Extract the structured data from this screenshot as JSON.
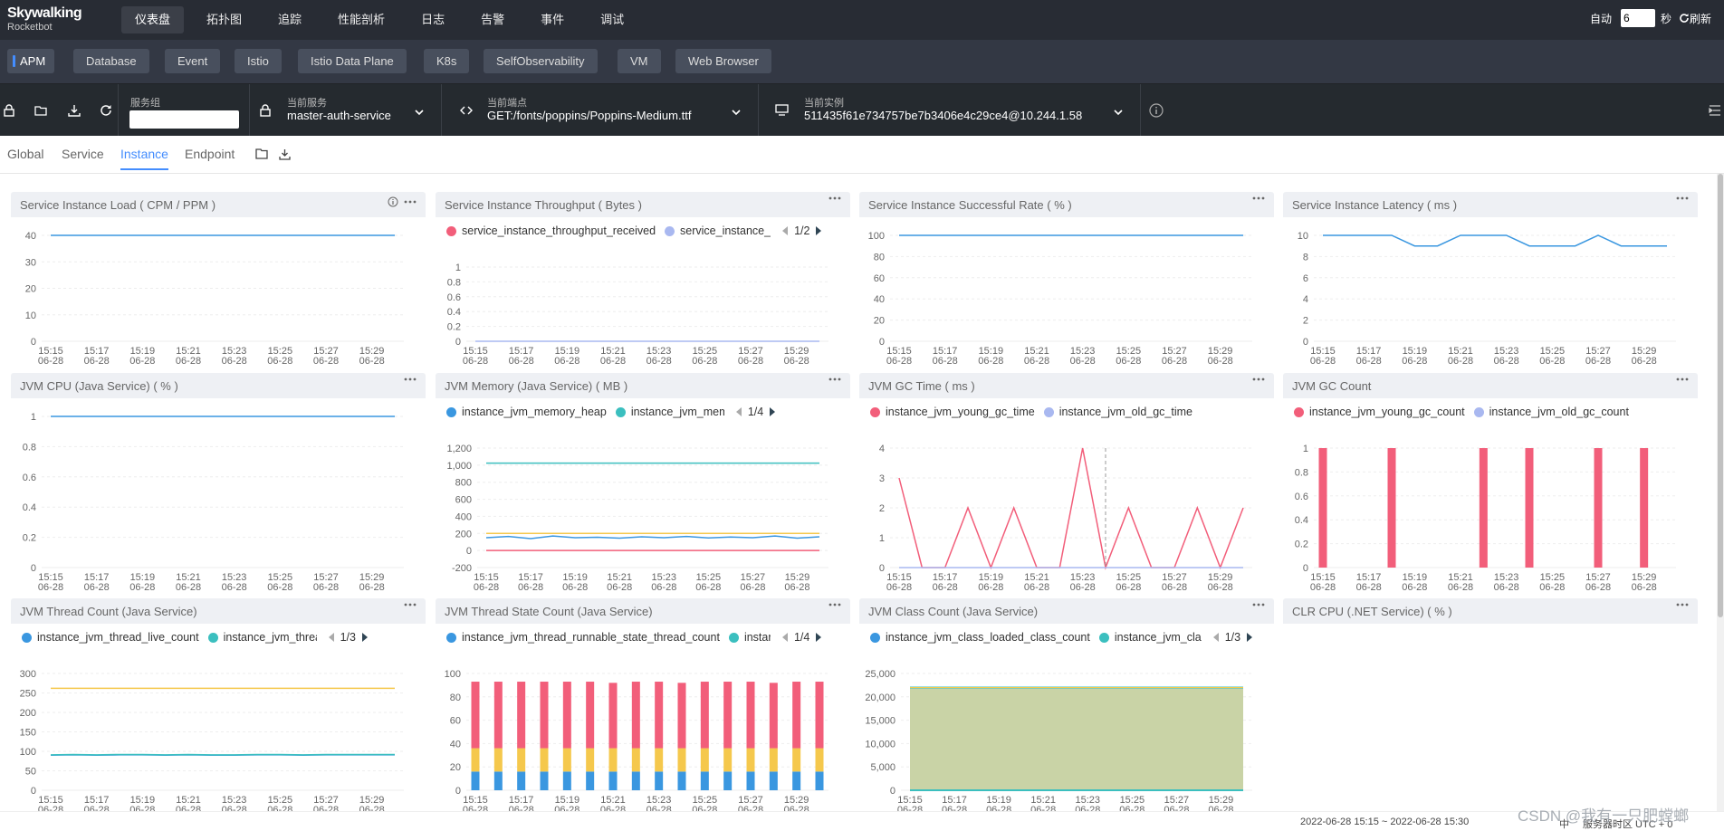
{
  "app": {
    "title": "Skywalking",
    "subtitle": "Rocketbot"
  },
  "nav": [
    {
      "label": "仪表盘",
      "active": true
    },
    {
      "label": "拓扑图"
    },
    {
      "label": "追踪"
    },
    {
      "label": "性能剖析"
    },
    {
      "label": "日志"
    },
    {
      "label": "告警"
    },
    {
      "label": "事件"
    },
    {
      "label": "调试"
    }
  ],
  "auto_refresh": {
    "label": "自动",
    "value": "6",
    "unit": "秒",
    "refresh_label": "刷新"
  },
  "layers": [
    "APM",
    "Database",
    "Event",
    "Istio",
    "Istio Data Plane",
    "K8s",
    "SelfObservability",
    "VM",
    "Web Browser"
  ],
  "selectors": {
    "group": {
      "label": "服务组",
      "value": ""
    },
    "service": {
      "label": "当前服务",
      "value": "master-auth-service"
    },
    "endpoint": {
      "label": "当前端点",
      "value": "GET:/fonts/poppins/Poppins-Medium.ttf"
    },
    "instance": {
      "label": "当前实例",
      "value": "511435f61e734757be7b3406e4c29ce4@10.244.1.58"
    }
  },
  "tabs": [
    {
      "label": "Global"
    },
    {
      "label": "Service"
    },
    {
      "label": "Instance",
      "active": true
    },
    {
      "label": "Endpoint"
    }
  ],
  "colors": {
    "accent": "#448dfe",
    "topbar": "#282c34",
    "blue": "#3a97e0",
    "pink": "#f25e7a",
    "lavender": "#a9b8f0",
    "teal": "#3bbfbf",
    "yellow": "#f5c84c"
  },
  "time_axis": [
    "15:15",
    "15:17",
    "15:19",
    "15:21",
    "15:23",
    "15:25",
    "15:27",
    "15:29"
  ],
  "time_axis_date": "06-28",
  "charts": [
    {
      "title": "Service Instance Load ( CPM / PPM )",
      "type": "line",
      "info": true,
      "ticks": [
        "0",
        "10",
        "20",
        "30",
        "40"
      ],
      "ymax": 40,
      "series": [
        {
          "values": [
            40,
            40,
            40,
            40,
            40,
            40,
            40,
            40,
            40,
            40,
            40,
            40,
            40,
            40,
            40,
            40
          ],
          "color": "blue"
        }
      ]
    },
    {
      "title": "Service Instance Throughput ( Bytes )",
      "type": "line",
      "ticks": [
        "0",
        "0.2",
        "0.4",
        "0.6",
        "0.8",
        "1"
      ],
      "ymax": 1,
      "legend": [
        "service_instance_throughput_received",
        "service_instance_"
      ],
      "legend_colors": [
        "pink",
        "lavender"
      ],
      "page": "1/2",
      "series": [
        {
          "values": [
            0,
            0,
            0,
            0,
            0,
            0,
            0,
            0,
            0,
            0,
            0,
            0,
            0,
            0,
            0,
            0
          ],
          "color": "lavender"
        }
      ]
    },
    {
      "title": "Service Instance Successful Rate ( % )",
      "type": "line",
      "ticks": [
        "0",
        "20",
        "40",
        "60",
        "80",
        "100"
      ],
      "ymax": 100,
      "series": [
        {
          "values": [
            100,
            100,
            100,
            100,
            100,
            100,
            100,
            100,
            100,
            100,
            100,
            100,
            100,
            100,
            100,
            100
          ],
          "color": "blue"
        }
      ]
    },
    {
      "title": "Service Instance Latency ( ms )",
      "type": "line",
      "ticks": [
        "0",
        "2",
        "4",
        "6",
        "8",
        "10"
      ],
      "ymax": 10,
      "series": [
        {
          "values": [
            10,
            10,
            10,
            10,
            9,
            9,
            10,
            10,
            10,
            9,
            9,
            9,
            10,
            9,
            9,
            9
          ],
          "color": "blue"
        }
      ]
    },
    {
      "title": "JVM CPU (Java Service) ( % )",
      "type": "line",
      "ticks": [
        "0",
        "0.2",
        "0.4",
        "0.6",
        "0.8",
        "1"
      ],
      "ymax": 1,
      "series": [
        {
          "values": [
            1,
            1,
            1,
            1,
            1,
            1,
            1,
            1,
            1,
            1,
            1,
            1,
            1,
            1,
            1,
            1
          ],
          "color": "blue"
        }
      ]
    },
    {
      "title": "JVM Memory (Java Service) ( MB )",
      "type": "line",
      "ticks": [
        "-200",
        "0",
        "200",
        "400",
        "600",
        "800",
        "1,000",
        "1,200"
      ],
      "ymin": -200,
      "ymax": 1200,
      "legend": [
        "instance_jvm_memory_heap",
        "instance_jvm_memory_hea|"
      ],
      "legend_colors": [
        "blue",
        "teal"
      ],
      "page": "1/4",
      "series": [
        {
          "values": [
            1024,
            1024,
            1024,
            1024,
            1024,
            1024,
            1024,
            1024,
            1024,
            1024,
            1024,
            1024,
            1024,
            1024,
            1024,
            1024
          ],
          "color": "teal"
        },
        {
          "values": [
            200,
            200,
            200,
            200,
            200,
            200,
            200,
            200,
            200,
            200,
            200,
            200,
            200,
            200,
            200,
            200
          ],
          "color": "yellow"
        },
        {
          "values": [
            150,
            165,
            140,
            170,
            150,
            155,
            145,
            160,
            150,
            165,
            148,
            158,
            150,
            170,
            145,
            160
          ],
          "color": "blue"
        },
        {
          "values": [
            0,
            0,
            0,
            0,
            0,
            0,
            0,
            0,
            0,
            0,
            0,
            0,
            0,
            0,
            0,
            0
          ],
          "color": "pink"
        }
      ]
    },
    {
      "title": "JVM GC Time ( ms )",
      "type": "line",
      "ticks": [
        "0",
        "1",
        "2",
        "3",
        "4"
      ],
      "ymax": 4,
      "legend": [
        "instance_jvm_young_gc_time",
        "instance_jvm_old_gc_time"
      ],
      "legend_colors": [
        "pink",
        "lavender"
      ],
      "series": [
        {
          "values": [
            3,
            0,
            0,
            2,
            0,
            2,
            0,
            0,
            4,
            0,
            2,
            0,
            0,
            2,
            0,
            2
          ],
          "color": "pink"
        },
        {
          "values": [
            0,
            0,
            0,
            0,
            0,
            0,
            0,
            0,
            0,
            0,
            0,
            0,
            0,
            0,
            0,
            0
          ],
          "color": "lavender"
        }
      ]
    },
    {
      "title": "JVM GC Count",
      "type": "bar",
      "ticks": [
        "0",
        "0.2",
        "0.4",
        "0.6",
        "0.8",
        "1"
      ],
      "ymax": 1,
      "legend": [
        "instance_jvm_young_gc_count",
        "instance_jvm_old_gc_count"
      ],
      "legend_colors": [
        "pink",
        "lavender"
      ],
      "series": [
        {
          "values": [
            1,
            0,
            0,
            1,
            0,
            0,
            0,
            1,
            0,
            1,
            0,
            0,
            1,
            0,
            1,
            0
          ],
          "color": "pink"
        }
      ]
    },
    {
      "title": "JVM Thread Count (Java Service)",
      "type": "line",
      "ticks": [
        "0",
        "50",
        "100",
        "150",
        "200",
        "250",
        "300"
      ],
      "ymax": 300,
      "legend": [
        "instance_jvm_thread_live_count",
        "instance_jvm_thread_da"
      ],
      "legend_colors": [
        "blue",
        "teal"
      ],
      "page": "1/3",
      "series": [
        {
          "values": [
            262,
            262,
            262,
            262,
            262,
            262,
            262,
            262,
            262,
            262,
            262,
            262,
            262,
            262,
            262,
            262
          ],
          "color": "yellow"
        },
        {
          "values": [
            90,
            91,
            90,
            91,
            91,
            90,
            91,
            90,
            90,
            91,
            91,
            90,
            91,
            91,
            91,
            91
          ],
          "color": "blue"
        },
        {
          "values": [
            91,
            92,
            91,
            92,
            92,
            91,
            92,
            91,
            91,
            92,
            92,
            91,
            92,
            92,
            92,
            92
          ],
          "color": "teal"
        }
      ]
    },
    {
      "title": "JVM Thread State Count (Java Service)",
      "type": "stack",
      "ticks": [
        "0",
        "20",
        "40",
        "60",
        "80",
        "100"
      ],
      "ymax": 100,
      "legend": [
        "instance_jvm_thread_runnable_state_thread_count",
        "instar"
      ],
      "legend_colors": [
        "blue",
        "teal"
      ],
      "page": "1/4",
      "stack": [
        {
          "values": [
            16,
            16,
            16,
            16,
            16,
            16,
            16,
            16,
            16,
            16,
            16,
            16,
            16,
            16,
            16,
            16
          ],
          "color": "blue"
        },
        {
          "values": [
            20,
            20,
            20,
            20,
            20,
            20,
            20,
            20,
            20,
            20,
            20,
            20,
            20,
            20,
            20,
            20
          ],
          "color": "yellow"
        },
        {
          "values": [
            57,
            57,
            57,
            57,
            57,
            57,
            56,
            57,
            57,
            56,
            57,
            57,
            57,
            56,
            57,
            57
          ],
          "color": "pink"
        }
      ]
    },
    {
      "title": "JVM Class Count (Java Service)",
      "type": "area",
      "ticks": [
        "0",
        "5,000",
        "10,000",
        "15,000",
        "20,000",
        "25,000"
      ],
      "ymax": 25000,
      "legend": [
        "instance_jvm_class_loaded_class_count",
        "instance_jvm_cla"
      ],
      "legend_colors": [
        "blue",
        "teal"
      ],
      "page": "1/3",
      "series": [
        {
          "values": [
            22000,
            22000,
            22000,
            22000,
            22000,
            22000,
            22000,
            22000,
            22000,
            22000,
            22000,
            22000,
            22000,
            22000,
            22000,
            22000
          ],
          "color": "yellow"
        }
      ]
    },
    {
      "title": "CLR CPU (.NET Service) ( % )",
      "type": "empty"
    }
  ],
  "footer": {
    "range": "2022-06-28 15:15 ~ 2022-06-28 15:30",
    "lang": "中",
    "tz": "服务器时区 UTC + 0"
  },
  "watermark": "CSDN @我有一只肥螳螂"
}
